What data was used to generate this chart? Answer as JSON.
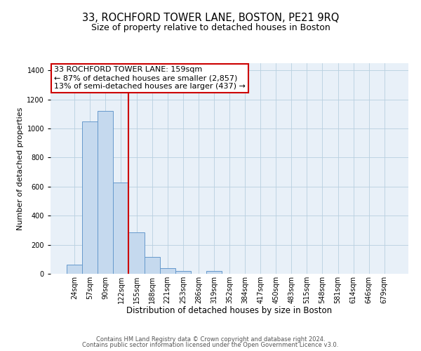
{
  "title": "33, ROCHFORD TOWER LANE, BOSTON, PE21 9RQ",
  "subtitle": "Size of property relative to detached houses in Boston",
  "xlabel": "Distribution of detached houses by size in Boston",
  "ylabel": "Number of detached properties",
  "bar_labels": [
    "24sqm",
    "57sqm",
    "90sqm",
    "122sqm",
    "155sqm",
    "188sqm",
    "221sqm",
    "253sqm",
    "286sqm",
    "319sqm",
    "352sqm",
    "384sqm",
    "417sqm",
    "450sqm",
    "483sqm",
    "515sqm",
    "548sqm",
    "581sqm",
    "614sqm",
    "646sqm",
    "679sqm"
  ],
  "bar_values": [
    65,
    1050,
    1120,
    630,
    285,
    115,
    40,
    20,
    0,
    20,
    0,
    0,
    0,
    0,
    0,
    0,
    0,
    0,
    0,
    0,
    0
  ],
  "bar_color": "#c5d9ee",
  "bar_edgecolor": "#6699cc",
  "vline_color": "#cc0000",
  "box_edgecolor": "#cc0000",
  "ylim": [
    0,
    1450
  ],
  "yticks": [
    0,
    200,
    400,
    600,
    800,
    1000,
    1200,
    1400
  ],
  "footnote1": "Contains HM Land Registry data © Crown copyright and database right 2024.",
  "footnote2": "Contains public sector information licensed under the Open Government Licence v3.0.",
  "background_color": "#e8f0f8",
  "fig_background": "#ffffff",
  "title_fontsize": 10.5,
  "subtitle_fontsize": 9,
  "xlabel_fontsize": 8.5,
  "ylabel_fontsize": 8,
  "tick_fontsize": 7,
  "annot_fontsize": 8,
  "footnote_fontsize": 6
}
